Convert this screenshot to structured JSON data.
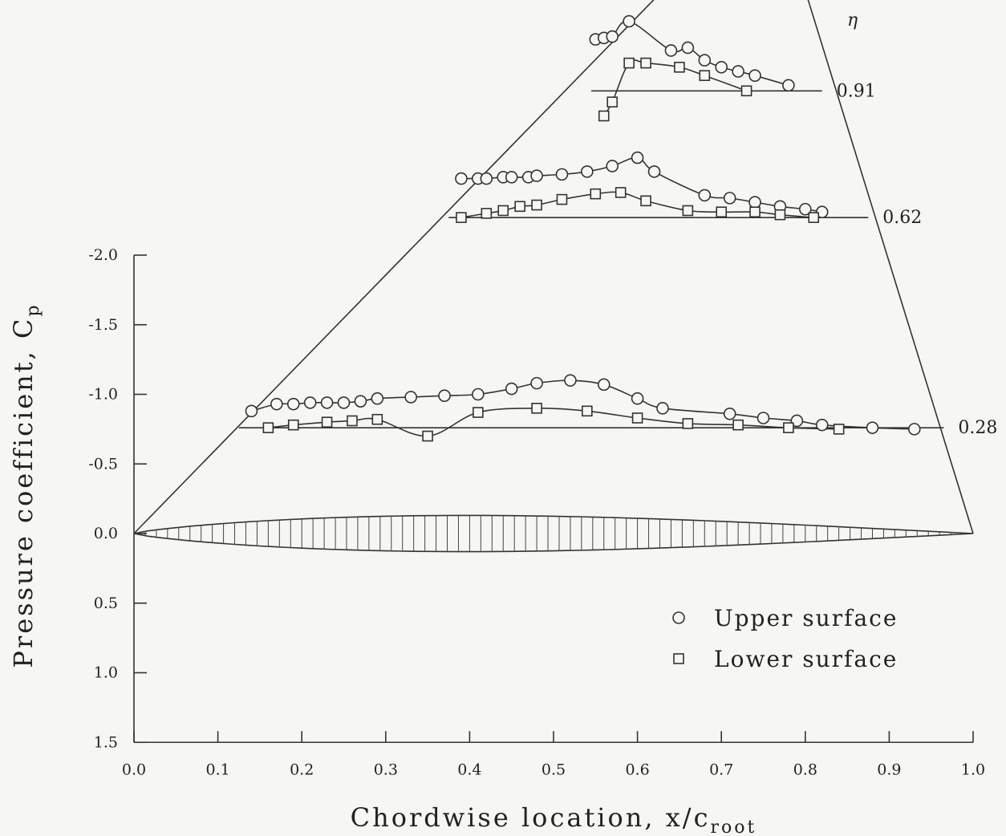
{
  "chart_data": {
    "type": "scatter",
    "xlabel": "Chordwise location, x/c",
    "xlabel_sub": "root",
    "ylabel": "Pressure coefficient, C",
    "ylabel_sub": "p",
    "xlim": [
      0.0,
      1.0
    ],
    "ylim": [
      1.5,
      -2.0
    ],
    "y_inverted": true,
    "x_ticks": [
      "0.0",
      "0.1",
      "0.2",
      "0.3",
      "0.4",
      "0.5",
      "0.6",
      "0.7",
      "0.8",
      "0.9",
      "1.0"
    ],
    "y_ticks": [
      "-2.0",
      "-1.5",
      "-1.0",
      "-0.5",
      "0.0",
      "0.5",
      "1.0",
      "1.5"
    ],
    "eta_symbol": "η",
    "legend": [
      {
        "marker": "circle",
        "label": "Upper surface"
      },
      {
        "marker": "square",
        "label": "Lower surface"
      }
    ],
    "stations": [
      {
        "eta": "0.28",
        "upper": [
          [
            0.14,
            -0.88
          ],
          [
            0.17,
            -0.93
          ],
          [
            0.19,
            -0.93
          ],
          [
            0.21,
            -0.94
          ],
          [
            0.23,
            -0.94
          ],
          [
            0.25,
            -0.94
          ],
          [
            0.27,
            -0.95
          ],
          [
            0.29,
            -0.97
          ],
          [
            0.33,
            -0.98
          ],
          [
            0.37,
            -0.99
          ],
          [
            0.41,
            -1.0
          ],
          [
            0.45,
            -1.04
          ],
          [
            0.48,
            -1.08
          ],
          [
            0.52,
            -1.1
          ],
          [
            0.56,
            -1.07
          ],
          [
            0.6,
            -0.97
          ],
          [
            0.63,
            -0.9
          ],
          [
            0.71,
            -0.86
          ],
          [
            0.75,
            -0.83
          ],
          [
            0.79,
            -0.81
          ],
          [
            0.82,
            -0.78
          ],
          [
            0.88,
            -0.76
          ],
          [
            0.93,
            -0.75
          ]
        ],
        "lower": [
          [
            0.16,
            -0.76
          ],
          [
            0.19,
            -0.78
          ],
          [
            0.23,
            -0.8
          ],
          [
            0.26,
            -0.81
          ],
          [
            0.29,
            -0.82
          ],
          [
            0.35,
            -0.7
          ],
          [
            0.41,
            -0.87
          ],
          [
            0.48,
            -0.9
          ],
          [
            0.54,
            -0.88
          ],
          [
            0.6,
            -0.83
          ],
          [
            0.66,
            -0.79
          ],
          [
            0.72,
            -0.78
          ],
          [
            0.78,
            -0.76
          ],
          [
            0.84,
            -0.75
          ]
        ]
      },
      {
        "eta": "0.62",
        "upper": [
          [
            0.39,
            -2.55
          ],
          [
            0.41,
            -2.55
          ],
          [
            0.42,
            -2.55
          ],
          [
            0.44,
            -2.56
          ],
          [
            0.45,
            -2.56
          ],
          [
            0.47,
            -2.56
          ],
          [
            0.48,
            -2.57
          ],
          [
            0.51,
            -2.58
          ],
          [
            0.54,
            -2.6
          ],
          [
            0.57,
            -2.64
          ],
          [
            0.6,
            -2.7
          ],
          [
            0.62,
            -2.6
          ],
          [
            0.68,
            -2.43
          ],
          [
            0.71,
            -2.41
          ],
          [
            0.74,
            -2.38
          ],
          [
            0.77,
            -2.35
          ],
          [
            0.8,
            -2.33
          ],
          [
            0.82,
            -2.31
          ]
        ],
        "lower": [
          [
            0.39,
            -2.27
          ],
          [
            0.42,
            -2.3
          ],
          [
            0.44,
            -2.32
          ],
          [
            0.46,
            -2.35
          ],
          [
            0.48,
            -2.36
          ],
          [
            0.51,
            -2.4
          ],
          [
            0.55,
            -2.44
          ],
          [
            0.58,
            -2.45
          ],
          [
            0.61,
            -2.39
          ],
          [
            0.66,
            -2.32
          ],
          [
            0.7,
            -2.31
          ],
          [
            0.74,
            -2.31
          ],
          [
            0.77,
            -2.29
          ],
          [
            0.81,
            -2.27
          ]
        ]
      },
      {
        "eta": "0.91",
        "upper": [
          [
            0.55,
            -3.55
          ],
          [
            0.56,
            -3.56
          ],
          [
            0.57,
            -3.57
          ],
          [
            0.59,
            -3.68
          ],
          [
            0.64,
            -3.47
          ],
          [
            0.66,
            -3.49
          ],
          [
            0.68,
            -3.4
          ],
          [
            0.7,
            -3.35
          ],
          [
            0.72,
            -3.32
          ],
          [
            0.74,
            -3.29
          ],
          [
            0.78,
            -3.22
          ]
        ],
        "lower": [
          [
            0.56,
            -3.0
          ],
          [
            0.57,
            -3.1
          ],
          [
            0.59,
            -3.38
          ],
          [
            0.61,
            -3.38
          ],
          [
            0.65,
            -3.35
          ],
          [
            0.68,
            -3.29
          ],
          [
            0.73,
            -3.18
          ]
        ]
      }
    ]
  }
}
